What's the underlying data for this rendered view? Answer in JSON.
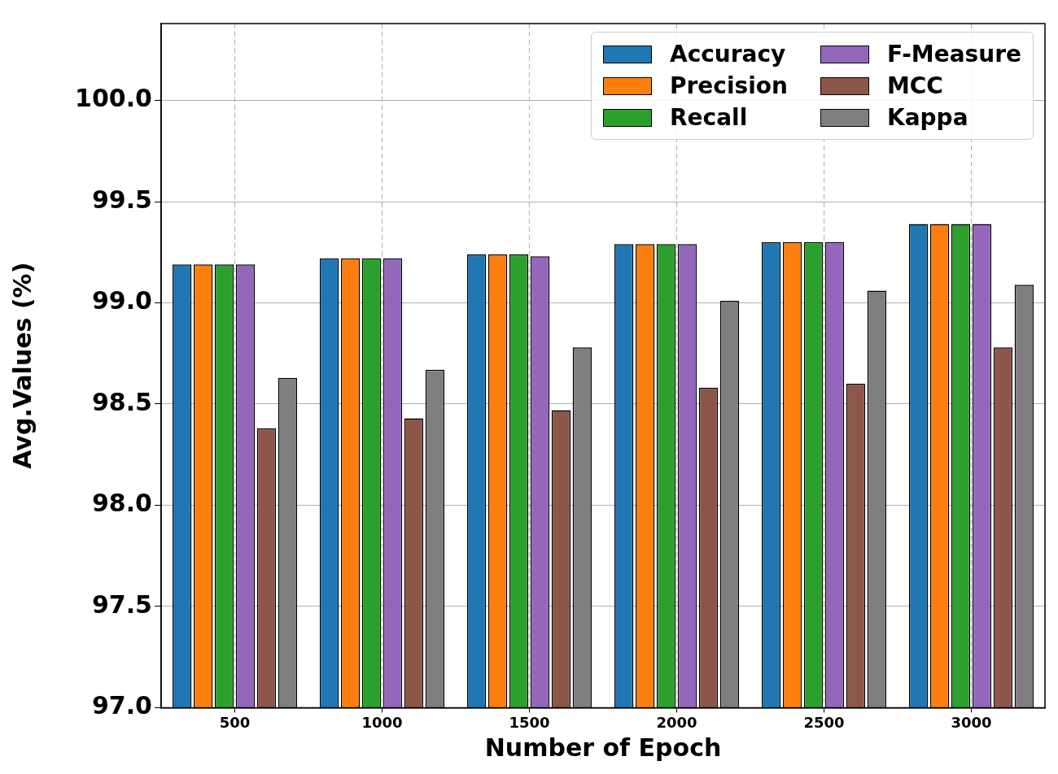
{
  "chart_data": {
    "type": "bar",
    "xlabel": "Number of Epoch",
    "ylabel": "Avg.Values (%)",
    "categories": [
      "500",
      "1000",
      "1500",
      "2000",
      "2500",
      "3000"
    ],
    "series": [
      {
        "name": "Accuracy",
        "color": "#1f77b4",
        "values": [
          99.19,
          99.22,
          99.24,
          99.29,
          99.3,
          99.39
        ]
      },
      {
        "name": "Precision",
        "color": "#ff7f0e",
        "values": [
          99.19,
          99.22,
          99.24,
          99.29,
          99.3,
          99.39
        ]
      },
      {
        "name": "Recall",
        "color": "#2ca02c",
        "values": [
          99.19,
          99.22,
          99.24,
          99.29,
          99.3,
          99.39
        ]
      },
      {
        "name": "F-Measure",
        "color": "#9467bd",
        "values": [
          99.19,
          99.22,
          99.23,
          99.29,
          99.3,
          99.39
        ]
      },
      {
        "name": "MCC",
        "color": "#8c564b",
        "values": [
          98.38,
          98.43,
          98.47,
          98.58,
          98.6,
          98.78
        ]
      },
      {
        "name": "Kappa",
        "color": "#7f7f7f",
        "values": [
          98.63,
          98.67,
          98.78,
          99.01,
          99.06,
          99.09
        ]
      }
    ],
    "ylim": [
      97.0,
      100.38
    ],
    "yticks": [
      {
        "value": 97,
        "label": "97.0"
      },
      {
        "value": 97.5,
        "label": "97.5"
      },
      {
        "value": 98,
        "label": "98.0"
      },
      {
        "value": 98.5,
        "label": "98.5"
      },
      {
        "value": 99,
        "label": "99.0"
      },
      {
        "value": 99.5,
        "label": "99.5"
      },
      {
        "value": 100,
        "label": "100.0"
      }
    ],
    "grid": true,
    "legend": "top right"
  }
}
